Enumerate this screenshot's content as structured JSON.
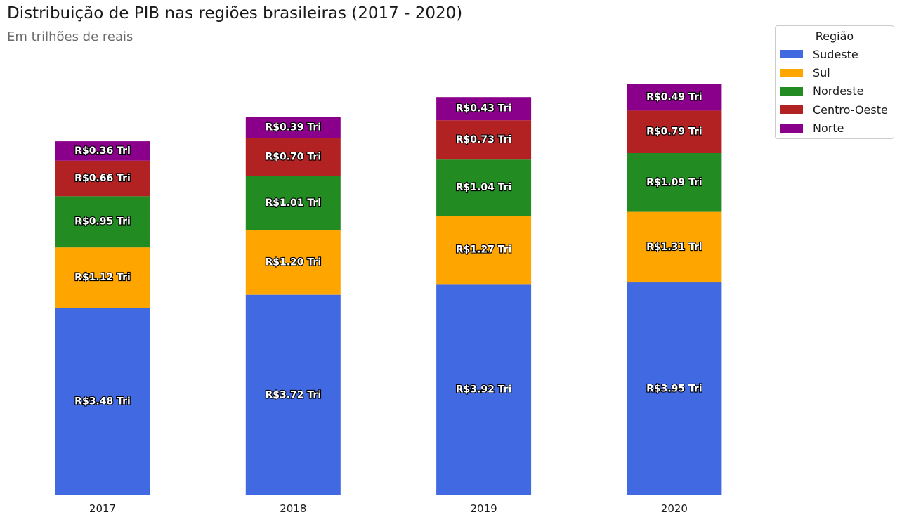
{
  "chart_data": {
    "type": "bar",
    "stacked": true,
    "title": "Distribuição de PIB nas regiões brasileiras (2017 - 2020)",
    "subtitle": "Em trilhões de reais",
    "categories": [
      "2017",
      "2018",
      "2019",
      "2020"
    ],
    "series": [
      {
        "name": "Sudeste",
        "color": "#4169E1",
        "values": [
          3.48,
          3.72,
          3.92,
          3.95
        ],
        "labels": [
          "R$3.48 Tri",
          "R$3.72 Tri",
          "R$3.92 Tri",
          "R$3.95 Tri"
        ]
      },
      {
        "name": "Sul",
        "color": "#FFA500",
        "values": [
          1.12,
          1.2,
          1.27,
          1.31
        ],
        "labels": [
          "R$1.12 Tri",
          "R$1.20 Tri",
          "R$1.27 Tri",
          "R$1.31 Tri"
        ]
      },
      {
        "name": "Nordeste",
        "color": "#228B22",
        "values": [
          0.95,
          1.01,
          1.04,
          1.09
        ],
        "labels": [
          "R$0.95 Tri",
          "R$1.01 Tri",
          "R$1.04 Tri",
          "R$1.09 Tri"
        ]
      },
      {
        "name": "Centro-Oeste",
        "color": "#B22222",
        "values": [
          0.66,
          0.7,
          0.73,
          0.79
        ],
        "labels": [
          "R$0.66 Tri",
          "R$0.70 Tri",
          "R$0.73 Tri",
          "R$0.79 Tri"
        ]
      },
      {
        "name": "Norte",
        "color": "#8B008B",
        "values": [
          0.36,
          0.39,
          0.43,
          0.49
        ],
        "labels": [
          "R$0.36 Tri",
          "R$0.39 Tri",
          "R$0.43 Tri",
          "R$0.49 Tri"
        ]
      }
    ],
    "legend": {
      "title": "Região",
      "position": "top-right"
    },
    "grid": false,
    "y_axis_visible": false
  }
}
